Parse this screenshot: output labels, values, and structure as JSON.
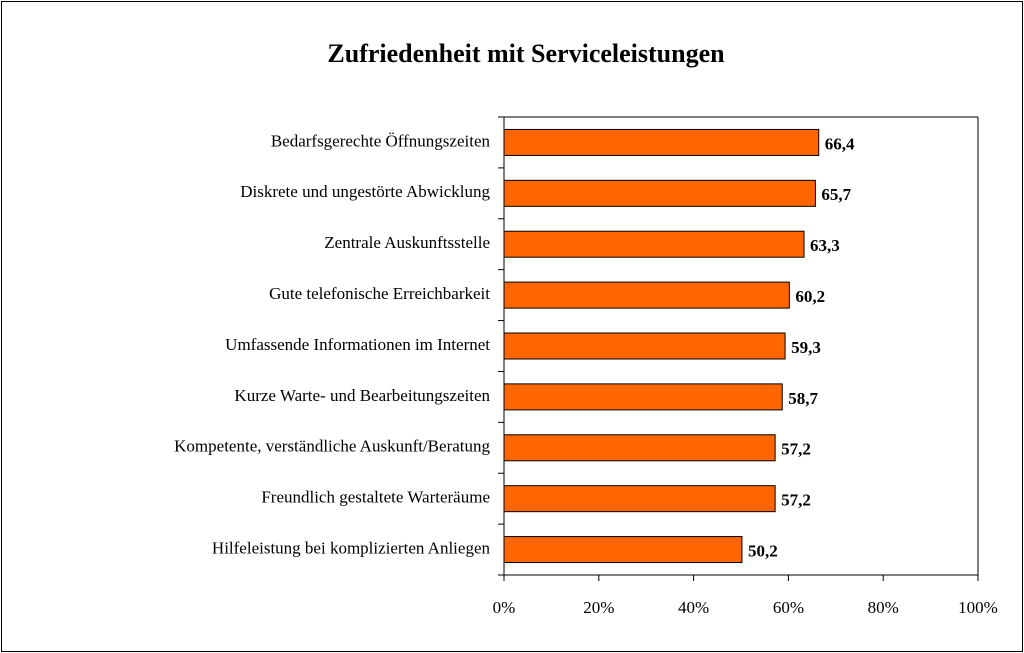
{
  "chart_data": {
    "type": "bar",
    "orientation": "horizontal",
    "title": "Zufriedenheit mit Serviceleistungen",
    "categories": [
      "Bedarfsgerechte Öffnungszeiten",
      "Diskrete und ungestörte Abwicklung",
      "Zentrale Auskunftsstelle",
      "Gute telefonische Erreichbarkeit",
      "Umfassende Informationen im Internet",
      "Kurze Warte- und Bearbeitungszeiten",
      "Kompetente, verständliche Auskunft/Beratung",
      "Freundlich gestaltete Warteräume",
      "Hilfeleistung bei komplizierten Anliegen"
    ],
    "values": [
      66.4,
      65.7,
      63.3,
      60.2,
      59.3,
      58.7,
      57.2,
      57.2,
      50.2
    ],
    "value_labels": [
      "66,4",
      "65,7",
      "63,3",
      "60,2",
      "59,3",
      "58,7",
      "57,2",
      "57,2",
      "50,2"
    ],
    "color": "#ff6600",
    "xlim": [
      0,
      100
    ],
    "xticks": [
      {
        "value": 0,
        "label": "0%"
      },
      {
        "value": 20,
        "label": "20%"
      },
      {
        "value": 40,
        "label": "40%"
      },
      {
        "value": 60,
        "label": "60%"
      },
      {
        "value": 80,
        "label": "80%"
      },
      {
        "value": 100,
        "label": "100%"
      }
    ],
    "grid": false
  }
}
